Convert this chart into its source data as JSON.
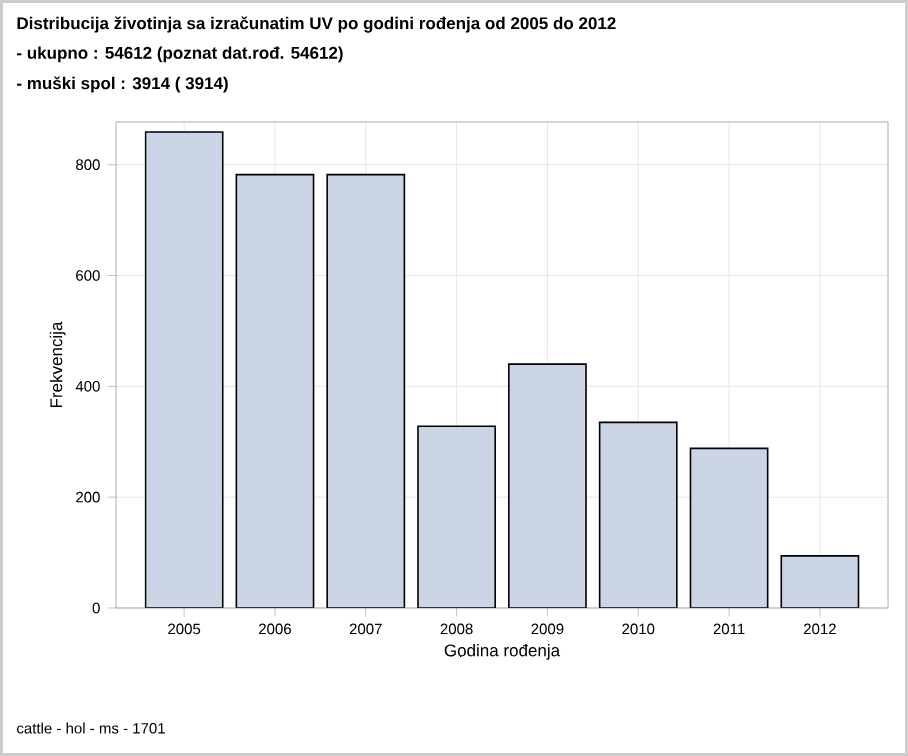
{
  "chart_data": {
    "type": "bar",
    "title": "Distribucija životinja sa izračunatim UV po godini rođenja od 2005 do 2012",
    "annotations": [
      "- ukupno : 54612 (poznat dat.rođ. 54612)",
      "- muški spol : 3914 ( 3914)",
      "cattle - hol - ms - 1701"
    ],
    "xlabel": "Godina rođenja",
    "ylabel": "Frekvencija",
    "categories": [
      "2005",
      "2006",
      "2007",
      "2008",
      "2009",
      "2010",
      "2011",
      "2012"
    ],
    "values": [
      859,
      782,
      782,
      328,
      440,
      335,
      288,
      94
    ],
    "color": "#cbd5e5",
    "ylim": [
      0,
      877
    ],
    "yticks": [
      0,
      200,
      400,
      600,
      800
    ],
    "grid": true
  }
}
